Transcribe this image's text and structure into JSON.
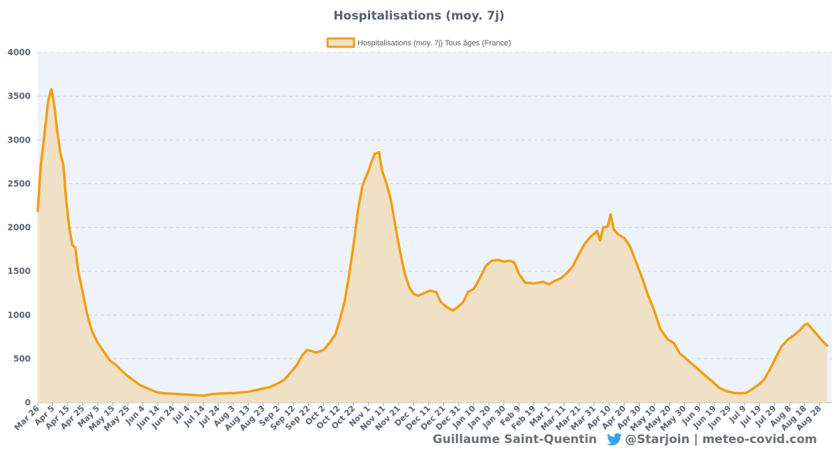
{
  "chart_data": {
    "type": "area",
    "title": "Hospitalisations (moy. 7j)",
    "legend": "Hospitalisations (moy. 7j) Tous âges (France)",
    "legend_position": "top-center",
    "grid": true,
    "ylim": [
      0,
      4000
    ],
    "yticks": [
      0,
      500,
      1000,
      1500,
      2000,
      2500,
      3000,
      3500,
      4000
    ],
    "xlim": [
      "2020-03-26",
      "2021-09-05"
    ],
    "xtick_labels": [
      "Mar 26",
      "Apr 5",
      "Apr 15",
      "Apr 25",
      "May 5",
      "May 15",
      "May 25",
      "Jun 4",
      "Jun 14",
      "Jun 24",
      "Jul 4",
      "Jul 14",
      "Jul 24",
      "Aug 3",
      "Aug 13",
      "Aug 23",
      "Sep 2",
      "Sep 12",
      "Sep 22",
      "Oct 2",
      "Oct 12",
      "Oct 22",
      "Nov 1",
      "Nov 11",
      "Nov 21",
      "Dec 1",
      "Dec 11",
      "Dec 21",
      "Dec 31",
      "Jan 10",
      "Jan 20",
      "Jan 30",
      "Feb 9",
      "Feb 19",
      "Mar 1",
      "Mar 11",
      "Mar 21",
      "Mar 31",
      "Apr 10",
      "Apr 20",
      "Apr 30",
      "May 10",
      "May 20",
      "May 30",
      "Jun 9",
      "Jun 19",
      "Jun 29",
      "Jul 9",
      "Jul 19",
      "Jul 29",
      "Aug 8",
      "Aug 18",
      "Aug 28"
    ],
    "line_color": "#f39c12",
    "fill_color": "#f0e1c6",
    "plot_background": "#eef3fb",
    "series": [
      {
        "name": "Hospitalisations (moy. 7j) Tous âges (France)",
        "points": [
          [
            "2020-03-26",
            2190
          ],
          [
            "2020-03-28",
            2700
          ],
          [
            "2020-03-31",
            3150
          ],
          [
            "2020-04-02",
            3450
          ],
          [
            "2020-04-04",
            3580
          ],
          [
            "2020-04-06",
            3400
          ],
          [
            "2020-04-08",
            3100
          ],
          [
            "2020-04-10",
            2850
          ],
          [
            "2020-04-12",
            2720
          ],
          [
            "2020-04-14",
            2300
          ],
          [
            "2020-04-16",
            2000
          ],
          [
            "2020-04-18",
            1800
          ],
          [
            "2020-04-20",
            1770
          ],
          [
            "2020-04-22",
            1500
          ],
          [
            "2020-04-25",
            1250
          ],
          [
            "2020-04-28",
            1000
          ],
          [
            "2020-05-01",
            820
          ],
          [
            "2020-05-05",
            680
          ],
          [
            "2020-05-09",
            580
          ],
          [
            "2020-05-13",
            480
          ],
          [
            "2020-05-17",
            430
          ],
          [
            "2020-05-21",
            360
          ],
          [
            "2020-05-25",
            300
          ],
          [
            "2020-05-29",
            250
          ],
          [
            "2020-06-02",
            200
          ],
          [
            "2020-06-06",
            170
          ],
          [
            "2020-06-10",
            140
          ],
          [
            "2020-06-14",
            115
          ],
          [
            "2020-06-18",
            105
          ],
          [
            "2020-06-24",
            100
          ],
          [
            "2020-07-04",
            90
          ],
          [
            "2020-07-14",
            78
          ],
          [
            "2020-07-20",
            95
          ],
          [
            "2020-07-24",
            102
          ],
          [
            "2020-08-03",
            108
          ],
          [
            "2020-08-13",
            122
          ],
          [
            "2020-08-19",
            145
          ],
          [
            "2020-08-23",
            160
          ],
          [
            "2020-08-28",
            180
          ],
          [
            "2020-09-02",
            220
          ],
          [
            "2020-09-06",
            260
          ],
          [
            "2020-09-10",
            340
          ],
          [
            "2020-09-14",
            420
          ],
          [
            "2020-09-18",
            540
          ],
          [
            "2020-09-21",
            600
          ],
          [
            "2020-09-24",
            590
          ],
          [
            "2020-09-27",
            570
          ],
          [
            "2020-10-02",
            600
          ],
          [
            "2020-10-06",
            680
          ],
          [
            "2020-10-10",
            780
          ],
          [
            "2020-10-13",
            950
          ],
          [
            "2020-10-16",
            1150
          ],
          [
            "2020-10-19",
            1450
          ],
          [
            "2020-10-22",
            1800
          ],
          [
            "2020-10-25",
            2200
          ],
          [
            "2020-10-28",
            2480
          ],
          [
            "2020-11-01",
            2650
          ],
          [
            "2020-11-03",
            2750
          ],
          [
            "2020-11-05",
            2840
          ],
          [
            "2020-11-08",
            2860
          ],
          [
            "2020-11-10",
            2650
          ],
          [
            "2020-11-13",
            2500
          ],
          [
            "2020-11-16",
            2300
          ],
          [
            "2020-11-19",
            2000
          ],
          [
            "2020-11-22",
            1720
          ],
          [
            "2020-11-25",
            1480
          ],
          [
            "2020-11-28",
            1320
          ],
          [
            "2020-12-01",
            1240
          ],
          [
            "2020-12-04",
            1220
          ],
          [
            "2020-12-08",
            1250
          ],
          [
            "2020-12-12",
            1280
          ],
          [
            "2020-12-16",
            1260
          ],
          [
            "2020-12-19",
            1150
          ],
          [
            "2020-12-23",
            1090
          ],
          [
            "2020-12-27",
            1050
          ],
          [
            "2020-12-31",
            1100
          ],
          [
            "2021-01-03",
            1150
          ],
          [
            "2021-01-06",
            1260
          ],
          [
            "2021-01-10",
            1300
          ],
          [
            "2021-01-14",
            1420
          ],
          [
            "2021-01-18",
            1560
          ],
          [
            "2021-01-22",
            1620
          ],
          [
            "2021-01-26",
            1630
          ],
          [
            "2021-01-30",
            1610
          ],
          [
            "2021-02-03",
            1620
          ],
          [
            "2021-02-06",
            1600
          ],
          [
            "2021-02-09",
            1470
          ],
          [
            "2021-02-13",
            1370
          ],
          [
            "2021-02-19",
            1360
          ],
          [
            "2021-02-25",
            1380
          ],
          [
            "2021-03-01",
            1350
          ],
          [
            "2021-03-05",
            1390
          ],
          [
            "2021-03-09",
            1420
          ],
          [
            "2021-03-13",
            1480
          ],
          [
            "2021-03-17",
            1560
          ],
          [
            "2021-03-21",
            1700
          ],
          [
            "2021-03-25",
            1820
          ],
          [
            "2021-03-29",
            1900
          ],
          [
            "2021-04-02",
            1960
          ],
          [
            "2021-04-04",
            1850
          ],
          [
            "2021-04-06",
            2000
          ],
          [
            "2021-04-09",
            2010
          ],
          [
            "2021-04-11",
            2150
          ],
          [
            "2021-04-13",
            1980
          ],
          [
            "2021-04-16",
            1920
          ],
          [
            "2021-04-20",
            1880
          ],
          [
            "2021-04-24",
            1780
          ],
          [
            "2021-04-28",
            1600
          ],
          [
            "2021-05-02",
            1420
          ],
          [
            "2021-05-06",
            1220
          ],
          [
            "2021-05-10",
            1050
          ],
          [
            "2021-05-14",
            840
          ],
          [
            "2021-05-19",
            720
          ],
          [
            "2021-05-23",
            680
          ],
          [
            "2021-05-27",
            560
          ],
          [
            "2021-05-30",
            520
          ],
          [
            "2021-06-02",
            470
          ],
          [
            "2021-06-07",
            400
          ],
          [
            "2021-06-12",
            320
          ],
          [
            "2021-06-17",
            250
          ],
          [
            "2021-06-22",
            170
          ],
          [
            "2021-06-27",
            130
          ],
          [
            "2021-07-02",
            110
          ],
          [
            "2021-07-06",
            105
          ],
          [
            "2021-07-10",
            110
          ],
          [
            "2021-07-14",
            150
          ],
          [
            "2021-07-18",
            200
          ],
          [
            "2021-07-22",
            260
          ],
          [
            "2021-07-26",
            380
          ],
          [
            "2021-07-30",
            520
          ],
          [
            "2021-08-03",
            650
          ],
          [
            "2021-08-07",
            720
          ],
          [
            "2021-08-11",
            770
          ],
          [
            "2021-08-15",
            830
          ],
          [
            "2021-08-18",
            890
          ],
          [
            "2021-08-20",
            900
          ],
          [
            "2021-08-23",
            840
          ],
          [
            "2021-08-27",
            760
          ],
          [
            "2021-08-30",
            700
          ],
          [
            "2021-09-02",
            650
          ]
        ]
      }
    ]
  },
  "footer": {
    "author": "Guillaume Saint-Quentin",
    "handle": "@Starjoin | meteo-covid.com",
    "bird_icon": "twitter-bird-icon",
    "bird_color": "#3ea0e8"
  }
}
